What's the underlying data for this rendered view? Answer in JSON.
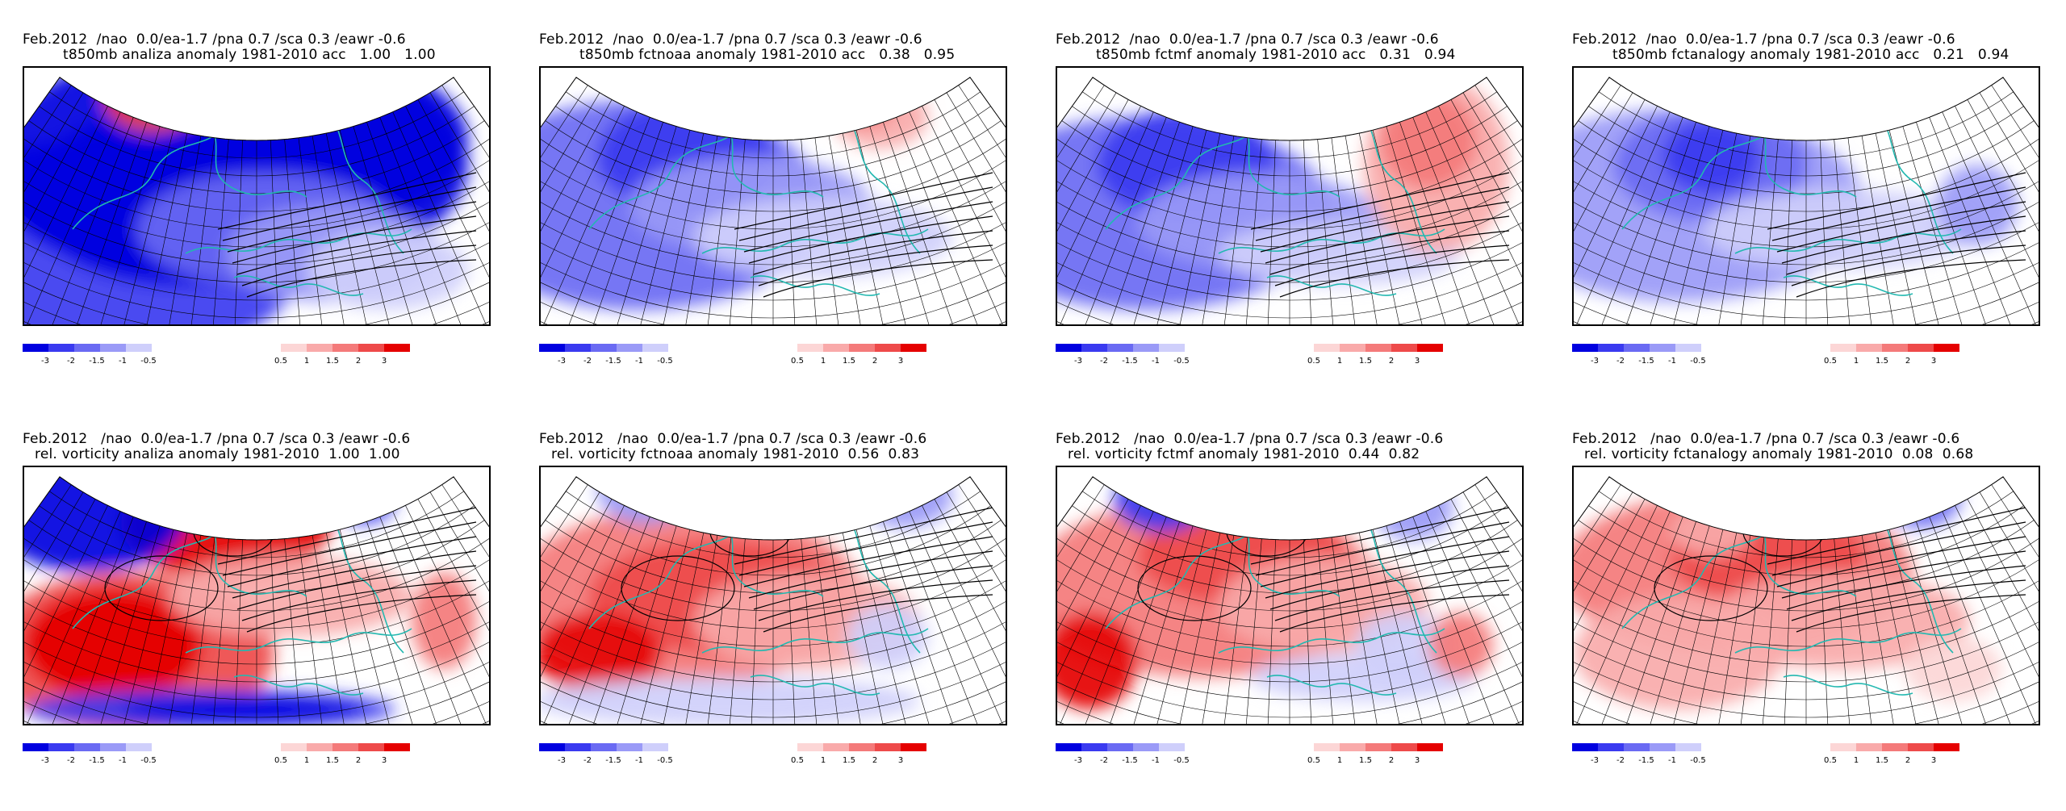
{
  "colors": {
    "neg": [
      "#0000e0",
      "#3a3af0",
      "#6a6af3",
      "#9a9af7",
      "#cfcffb"
    ],
    "pos": [
      "#fcd6d6",
      "#f9aaaa",
      "#f47a7a",
      "#ee4a4a",
      "#e50000"
    ],
    "land": "#22b8b0"
  },
  "colorbar": {
    "neg_labels": [
      "-3",
      "-2",
      "-1.5",
      "-1",
      "-0.5"
    ],
    "pos_labels": [
      "0.5",
      "1",
      "1.5",
      "2",
      "3"
    ]
  },
  "panels": [
    {
      "line1": "Feb.2012  /nao  0.0/ea-1.7 /pna 0.7 /sca 0.3 /eawr -0.6",
      "line2": "t850mb analiza anomaly 1981-2010 acc   1.00   1.00",
      "pattern": "t_analiza"
    },
    {
      "line1": "Feb.2012  /nao  0.0/ea-1.7 /pna 0.7 /sca 0.3 /eawr -0.6",
      "line2": "t850mb fctnoaa anomaly 1981-2010 acc   0.38   0.95",
      "pattern": "t_noaa"
    },
    {
      "line1": "Feb.2012  /nao  0.0/ea-1.7 /pna 0.7 /sca 0.3 /eawr -0.6",
      "line2": "t850mb fctmf anomaly 1981-2010 acc   0.31   0.94",
      "pattern": "t_mf"
    },
    {
      "line1": "Feb.2012  /nao  0.0/ea-1.7 /pna 0.7 /sca 0.3 /eawr -0.6",
      "line2": "t850mb fctanalogy anomaly 1981-2010 acc   0.21   0.94",
      "pattern": "t_analogy"
    },
    {
      "line1": "Feb.2012   /nao  0.0/ea-1.7 /pna 0.7 /sca 0.3 /eawr -0.6",
      "line2": "rel. vorticity analiza anomaly 1981-2010  1.00  1.00",
      "pattern": "v_analiza"
    },
    {
      "line1": "Feb.2012   /nao  0.0/ea-1.7 /pna 0.7 /sca 0.3 /eawr -0.6",
      "line2": "rel. vorticity fctnoaa anomaly 1981-2010  0.56  0.83",
      "pattern": "v_noaa"
    },
    {
      "line1": "Feb.2012   /nao  0.0/ea-1.7 /pna 0.7 /sca 0.3 /eawr -0.6",
      "line2": "rel. vorticity fctmf anomaly 1981-2010  0.44  0.82",
      "pattern": "v_mf"
    },
    {
      "line1": "Feb.2012   /nao  0.0/ea-1.7 /pna 0.7 /sca 0.3 /eawr -0.6",
      "line2": "rel. vorticity fctanalogy anomaly 1981-2010  0.08  0.68",
      "pattern": "v_analogy"
    }
  ]
}
